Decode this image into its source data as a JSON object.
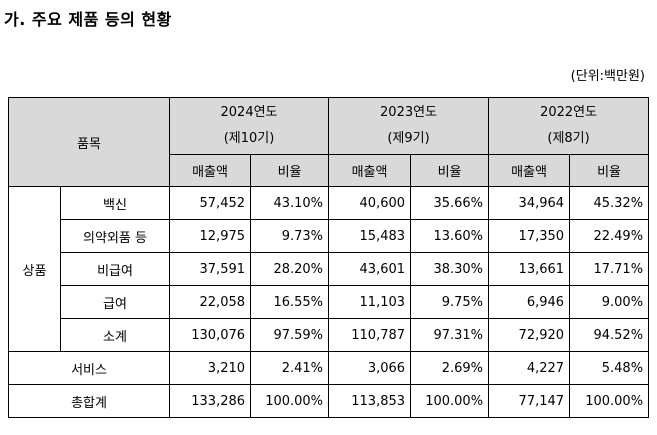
{
  "title": "가. 주요 제품 등의 현황",
  "unit": "(단위:백만원)",
  "header": {
    "item": "품목",
    "years": [
      {
        "year": "2024연도",
        "term": "(제10기)"
      },
      {
        "year": "2023연도",
        "term": "(제9기)"
      },
      {
        "year": "2022연도",
        "term": "(제8기)"
      }
    ],
    "sales": "매출액",
    "ratio": "비율"
  },
  "group_label": "상품",
  "rows": [
    {
      "label": "백신",
      "values": [
        "57,452",
        "43.10%",
        "40,600",
        "35.66%",
        "34,964",
        "45.32%"
      ]
    },
    {
      "label": "의약외품 등",
      "values": [
        "12,975",
        "9.73%",
        "15,483",
        "13.60%",
        "17,350",
        "22.49%"
      ]
    },
    {
      "label": "비급여",
      "values": [
        "37,591",
        "28.20%",
        "43,601",
        "38.30%",
        "13,661",
        "17.71%"
      ]
    },
    {
      "label": "급여",
      "values": [
        "22,058",
        "16.55%",
        "11,103",
        "9.75%",
        "6,946",
        "9.00%"
      ]
    },
    {
      "label": "소계",
      "values": [
        "130,076",
        "97.59%",
        "110,787",
        "97.31%",
        "72,920",
        "94.52%"
      ]
    },
    {
      "label": "서비스",
      "values": [
        "3,210",
        "2.41%",
        "3,066",
        "2.69%",
        "4,227",
        "5.48%"
      ]
    },
    {
      "label": "총합계",
      "values": [
        "133,286",
        "100.00%",
        "113,853",
        "100.00%",
        "77,147",
        "100.00%"
      ]
    }
  ]
}
